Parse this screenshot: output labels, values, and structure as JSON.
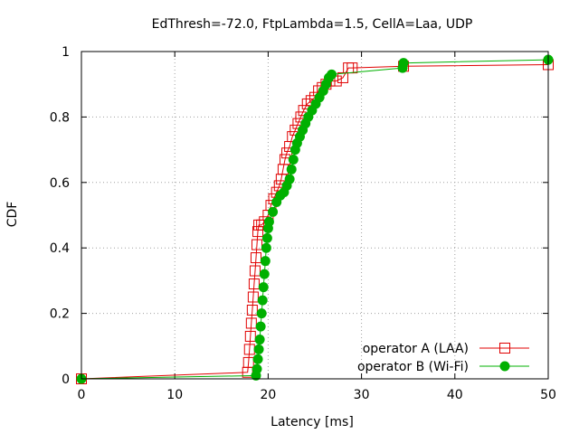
{
  "chart_data": {
    "type": "line",
    "title": "EdThresh=-72.0, FtpLambda=1.5, CellA=Laa, UDP",
    "xlabel": "Latency [ms]",
    "ylabel": "CDF",
    "xlim": [
      0,
      50
    ],
    "ylim": [
      0,
      1
    ],
    "xticks": [
      "0",
      "10",
      "20",
      "30",
      "40",
      "50"
    ],
    "yticks": [
      "0",
      "0.2",
      "0.4",
      "0.6",
      "0.8",
      "1"
    ],
    "grid": true,
    "legend_position": "bottom-right",
    "series": [
      {
        "name": "operator A (LAA)",
        "color": "#e00000",
        "marker": "open-square",
        "points": [
          [
            0,
            0
          ],
          [
            17.8,
            0.02
          ],
          [
            17.9,
            0.05
          ],
          [
            18.0,
            0.09
          ],
          [
            18.1,
            0.13
          ],
          [
            18.2,
            0.17
          ],
          [
            18.3,
            0.21
          ],
          [
            18.4,
            0.25
          ],
          [
            18.5,
            0.29
          ],
          [
            18.6,
            0.33
          ],
          [
            18.7,
            0.37
          ],
          [
            18.8,
            0.41
          ],
          [
            18.9,
            0.45
          ],
          [
            19.0,
            0.47
          ],
          [
            19.3,
            0.47
          ],
          [
            19.6,
            0.48
          ],
          [
            20.0,
            0.5
          ],
          [
            20.3,
            0.53
          ],
          [
            20.6,
            0.55
          ],
          [
            20.9,
            0.57
          ],
          [
            21.2,
            0.59
          ],
          [
            21.4,
            0.61
          ],
          [
            21.6,
            0.64
          ],
          [
            21.8,
            0.67
          ],
          [
            22.0,
            0.69
          ],
          [
            22.3,
            0.71
          ],
          [
            22.6,
            0.74
          ],
          [
            22.9,
            0.76
          ],
          [
            23.2,
            0.78
          ],
          [
            23.5,
            0.8
          ],
          [
            23.8,
            0.82
          ],
          [
            24.2,
            0.84
          ],
          [
            24.6,
            0.85
          ],
          [
            25.0,
            0.86
          ],
          [
            25.4,
            0.88
          ],
          [
            25.8,
            0.89
          ],
          [
            26.2,
            0.9
          ],
          [
            26.6,
            0.91
          ],
          [
            27.3,
            0.91
          ],
          [
            28.0,
            0.92
          ],
          [
            28.6,
            0.95
          ],
          [
            29.0,
            0.95
          ],
          [
            34.5,
            0.955
          ],
          [
            50,
            0.96
          ]
        ]
      },
      {
        "name": "operator B (Wi-Fi)",
        "color": "#00b000",
        "marker": "filled-circle",
        "points": [
          [
            0,
            0
          ],
          [
            18.7,
            0.01
          ],
          [
            18.8,
            0.03
          ],
          [
            18.9,
            0.06
          ],
          [
            19.0,
            0.09
          ],
          [
            19.1,
            0.12
          ],
          [
            19.2,
            0.16
          ],
          [
            19.3,
            0.2
          ],
          [
            19.4,
            0.24
          ],
          [
            19.5,
            0.28
          ],
          [
            19.6,
            0.32
          ],
          [
            19.7,
            0.36
          ],
          [
            19.8,
            0.4
          ],
          [
            19.9,
            0.43
          ],
          [
            20.0,
            0.46
          ],
          [
            20.1,
            0.48
          ],
          [
            20.5,
            0.51
          ],
          [
            20.9,
            0.54
          ],
          [
            21.3,
            0.56
          ],
          [
            21.7,
            0.57
          ],
          [
            22.0,
            0.59
          ],
          [
            22.3,
            0.61
          ],
          [
            22.5,
            0.64
          ],
          [
            22.7,
            0.67
          ],
          [
            22.9,
            0.7
          ],
          [
            23.1,
            0.72
          ],
          [
            23.4,
            0.74
          ],
          [
            23.7,
            0.76
          ],
          [
            24.0,
            0.78
          ],
          [
            24.3,
            0.8
          ],
          [
            24.7,
            0.82
          ],
          [
            25.1,
            0.84
          ],
          [
            25.5,
            0.86
          ],
          [
            25.9,
            0.88
          ],
          [
            26.2,
            0.9
          ],
          [
            26.5,
            0.92
          ],
          [
            26.8,
            0.93
          ],
          [
            34.4,
            0.95
          ],
          [
            34.5,
            0.965
          ],
          [
            50,
            0.975
          ]
        ]
      }
    ]
  }
}
